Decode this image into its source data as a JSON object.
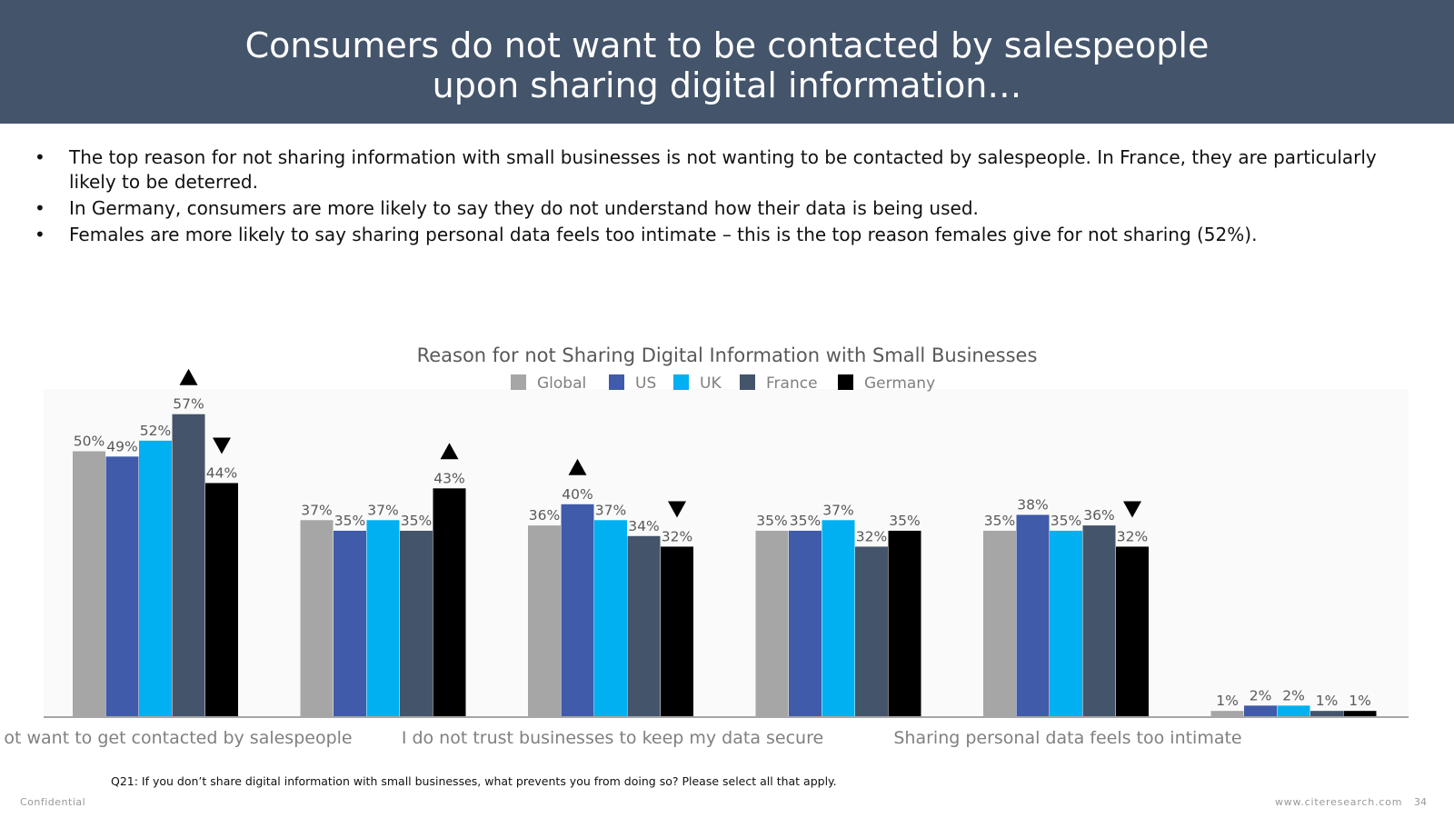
{
  "header": {
    "title_line1": "Consumers do not want to be contacted by salespeople",
    "title_line2": "upon sharing digital information…",
    "background": "#44546a"
  },
  "bullets": [
    "The top reason for not sharing information with small businesses is not wanting to be contacted by salespeople.  In France, they are particularly likely to be deterred.",
    "In Germany, consumers are more likely to say they do not understand how their data is being used.",
    "Females are more likely to say sharing personal data feels too intimate – this is the top reason females give for not sharing (52%)."
  ],
  "chart_data": {
    "type": "bar",
    "title": "Reason for not Sharing Digital Information with Small Businesses",
    "legend_position": "top-center",
    "categories": [
      "I do not want to get contacted by salespeople",
      "",
      "I do not trust businesses to keep my data secure",
      "",
      "Sharing personal data feels too intimate",
      ""
    ],
    "visible_category_labels": [
      "ot want to get contacted by salespeople",
      "I do not trust businesses to keep my data secure",
      "Sharing personal data feels too intimate"
    ],
    "series": [
      {
        "name": "Global",
        "color": "#a6a6a6",
        "values": [
          50,
          37,
          36,
          35,
          35,
          1
        ]
      },
      {
        "name": "US",
        "color": "#3f5ba9",
        "values": [
          49,
          35,
          40,
          35,
          38,
          2
        ]
      },
      {
        "name": "UK",
        "color": "#00b0f0",
        "values": [
          52,
          37,
          37,
          37,
          35,
          2
        ]
      },
      {
        "name": "France",
        "color": "#44546a",
        "values": [
          57,
          35,
          34,
          32,
          36,
          1
        ]
      },
      {
        "name": "Germany",
        "color": "#000000",
        "values": [
          44,
          43,
          32,
          35,
          32,
          1
        ]
      }
    ],
    "value_suffix": "%",
    "ylim": [
      0,
      60
    ],
    "significance_markers": [
      {
        "category": 0,
        "series": "France",
        "direction": "up"
      },
      {
        "category": 0,
        "series": "Germany",
        "direction": "down"
      },
      {
        "category": 1,
        "series": "Germany",
        "direction": "up"
      },
      {
        "category": 2,
        "series": "US",
        "direction": "up"
      },
      {
        "category": 2,
        "series": "Germany",
        "direction": "down"
      },
      {
        "category": 4,
        "series": "Germany",
        "direction": "down"
      }
    ]
  },
  "footnote": "Q21: If you don’t share digital information with small businesses, what prevents you from doing so? Please select all that apply.",
  "footer": {
    "confidential": "Confidential",
    "url": "www.citeresearch.com",
    "page_number": "34"
  }
}
